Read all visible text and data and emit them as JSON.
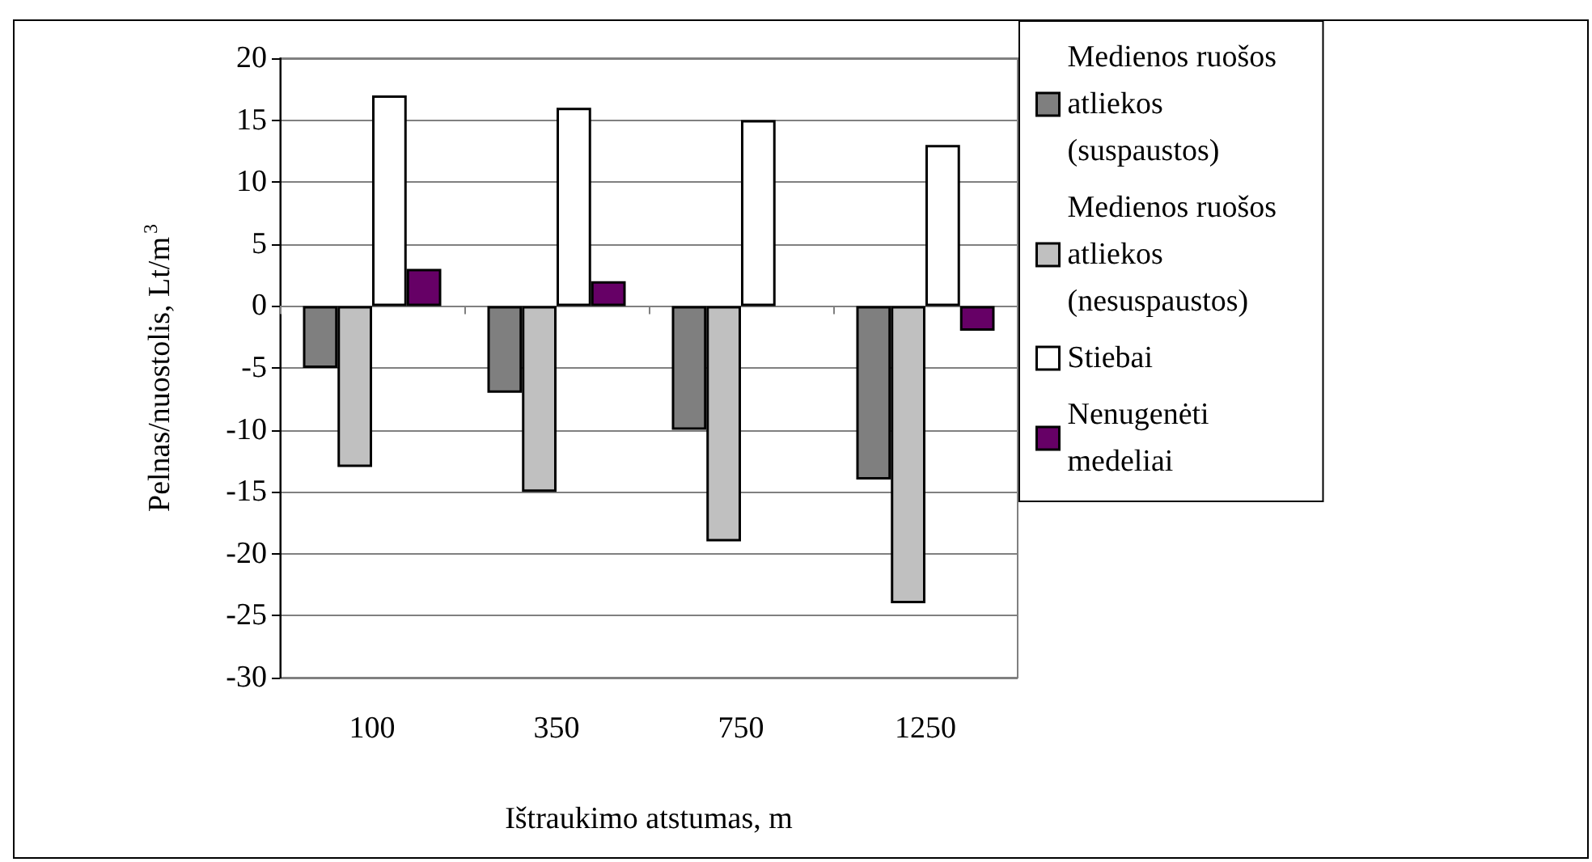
{
  "chart_data": {
    "type": "bar",
    "ylabel": "Pelnas/nuostolis, Lt/m$^{3}$",
    "xlabel": "Ištraukimo atstumas, m",
    "categories": [
      "100",
      "350",
      "750",
      "1250"
    ],
    "series": [
      {
        "name": "Medienos ruošos atliekos (suspaustos)",
        "color": "#7f7f7f",
        "values": [
          -5,
          -7,
          -10,
          -14
        ]
      },
      {
        "name": "Medienos ruošos atliekos (nesuspaustos)",
        "color": "#c0c0c0",
        "values": [
          -13,
          -15,
          -19,
          -24
        ]
      },
      {
        "name": "Stiebai",
        "color": "#ffffff",
        "values": [
          17,
          16,
          15,
          13
        ]
      },
      {
        "name": "Nenugenėti medeliai",
        "color": "#660066",
        "values": [
          3,
          2,
          null,
          -2
        ]
      }
    ],
    "ylim": [
      -30,
      20
    ],
    "yticks": [
      -30,
      -25,
      -20,
      -15,
      -10,
      -5,
      0,
      5,
      10,
      15,
      20
    ],
    "grid": "y",
    "legend": "right"
  }
}
